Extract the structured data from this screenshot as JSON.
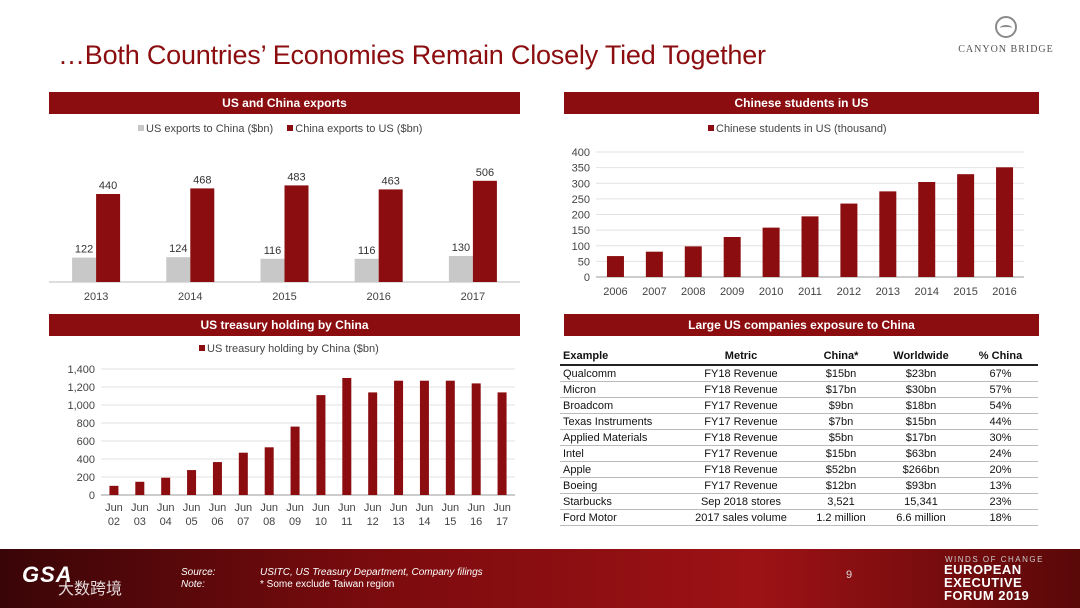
{
  "title": "…Both Countries’ Economies Remain Closely Tied Together",
  "logo_text": "CANYON BRIDGE",
  "colors": {
    "primary": "#8b0d0f",
    "secondary": "#c8c8c8"
  },
  "panels": {
    "exports": {
      "heading": "US and China exports"
    },
    "students": {
      "heading": "Chinese students in US"
    },
    "treasury": {
      "heading": "US treasury holding by China"
    },
    "companies": {
      "heading": "Large US companies exposure to China"
    }
  },
  "chart_data": [
    {
      "type": "bar",
      "categories": [
        "2013",
        "2014",
        "2015",
        "2016",
        "2017"
      ],
      "series": [
        {
          "name": "US exports to China ($bn)",
          "values": [
            122,
            124,
            116,
            116,
            130
          ],
          "color": "#c8c8c8"
        },
        {
          "name": "China exports to US ($bn)",
          "values": [
            440,
            468,
            483,
            463,
            506
          ],
          "color": "#8b0d0f"
        }
      ],
      "ylim": [
        0,
        600
      ],
      "legend": "top",
      "data_labels": true
    },
    {
      "type": "bar",
      "categories": [
        "2006",
        "2007",
        "2008",
        "2009",
        "2010",
        "2011",
        "2012",
        "2013",
        "2014",
        "2015",
        "2016"
      ],
      "series": [
        {
          "name": "Chinese students in US (thousand)",
          "values": [
            67,
            81,
            98,
            128,
            158,
            194,
            235,
            274,
            304,
            329,
            351
          ],
          "color": "#8b0d0f"
        }
      ],
      "ylim": [
        0,
        400
      ],
      "yticks": [
        "0",
        "50",
        "100",
        "150",
        "200",
        "250",
        "300",
        "350",
        "400"
      ],
      "grid": true,
      "legend": "top"
    },
    {
      "type": "bar",
      "categories": [
        "Jun 02",
        "Jun 03",
        "Jun 04",
        "Jun 05",
        "Jun 06",
        "Jun 07",
        "Jun 08",
        "Jun 09",
        "Jun 10",
        "Jun 11",
        "Jun 12",
        "Jun 13",
        "Jun 14",
        "Jun 15",
        "Jun 16",
        "Jun 17"
      ],
      "series": [
        {
          "name": "US treasury holding by China ($bn)",
          "values": [
            102,
            147,
            192,
            277,
            366,
            470,
            530,
            760,
            1110,
            1300,
            1140,
            1270,
            1270,
            1270,
            1240,
            1140
          ],
          "color": "#8b0d0f"
        }
      ],
      "ylim": [
        0,
        1400
      ],
      "yticks": [
        "0",
        "200",
        "400",
        "600",
        "800",
        "1,000",
        "1,200",
        "1,400"
      ],
      "grid": true,
      "legend": "top"
    },
    {
      "type": "table",
      "columns": [
        "Example",
        "Metric",
        "China*",
        "Worldwide",
        "% China"
      ],
      "rows": [
        [
          "Qualcomm",
          "FY18 Revenue",
          "$15bn",
          "$23bn",
          "67%"
        ],
        [
          "Micron",
          "FY18 Revenue",
          "$17bn",
          "$30bn",
          "57%"
        ],
        [
          "Broadcom",
          "FY17 Revenue",
          "$9bn",
          "$18bn",
          "54%"
        ],
        [
          "Texas Instruments",
          "FY17 Revenue",
          "$7bn",
          "$15bn",
          "44%"
        ],
        [
          "Applied Materials",
          "FY18 Revenue",
          "$5bn",
          "$17bn",
          "30%"
        ],
        [
          "Intel",
          "FY17 Revenue",
          "$15bn",
          "$63bn",
          "24%"
        ],
        [
          "Apple",
          "FY18 Revenue",
          "$52bn",
          "$266bn",
          "20%"
        ],
        [
          "Boeing",
          "FY17 Revenue",
          "$12bn",
          "$93bn",
          "13%"
        ],
        [
          "Starbucks",
          "Sep 2018 stores",
          "3,521",
          "15,341",
          "23%"
        ],
        [
          "Ford Motor",
          "2017 sales volume",
          "1.2 million",
          "6.6 million",
          "18%"
        ]
      ]
    }
  ],
  "footer": {
    "source_label": "Source:",
    "source_text": "USITC, US Treasury Department, Company filings",
    "note_label": "Note:",
    "note_text": "* Some exclude Taiwan region",
    "page_number": "9",
    "event_small": "WINDS OF CHANGE",
    "event_line1": "EUROPEAN",
    "event_line2": "EXECUTIVE",
    "event_line3": "FORUM 2019",
    "gsa": "GSA",
    "watermark": "大数跨境"
  }
}
